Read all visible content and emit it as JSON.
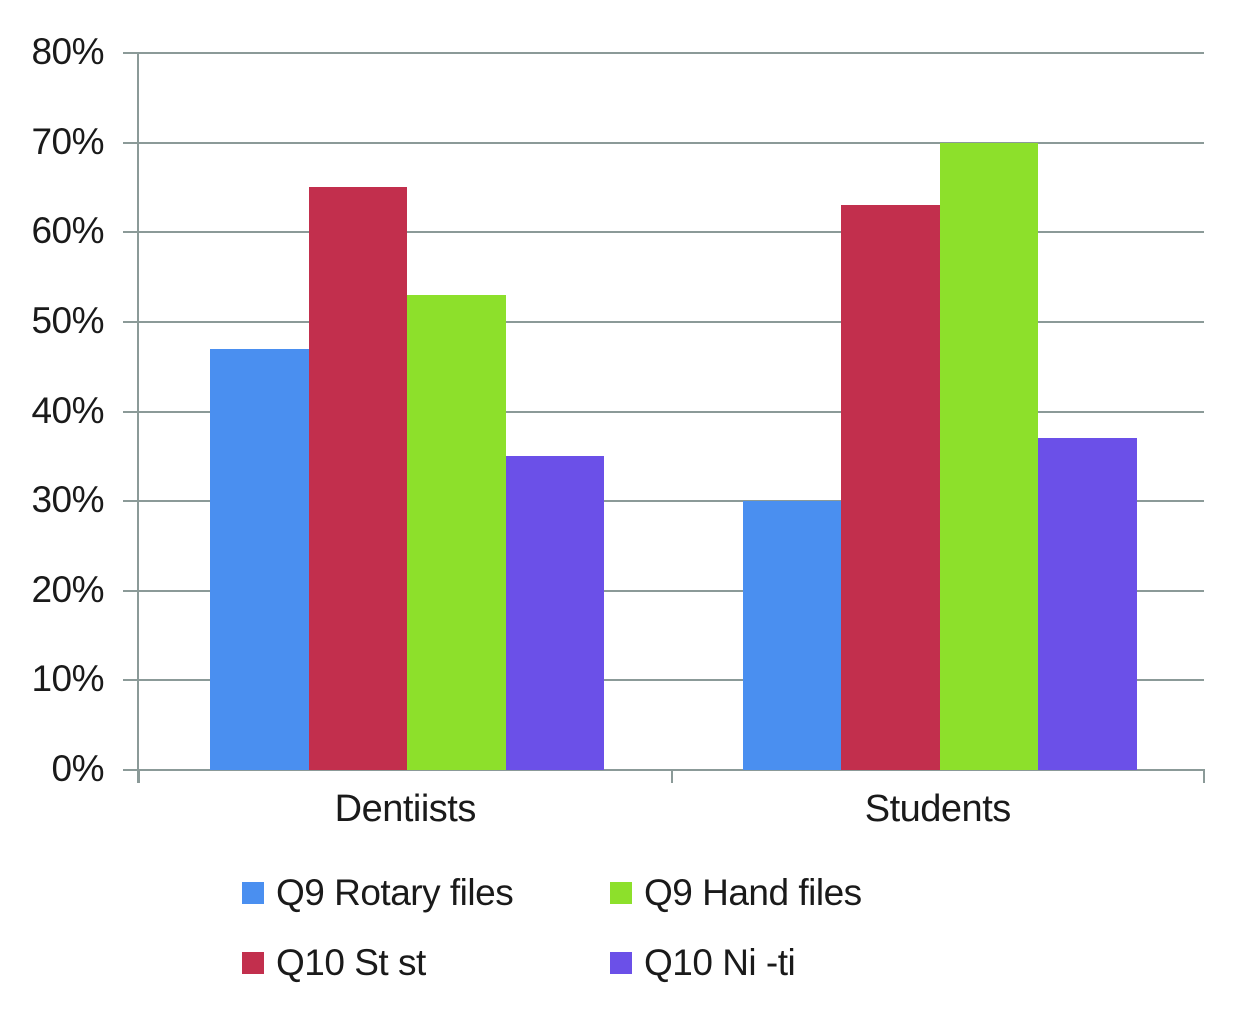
{
  "chart_data": {
    "type": "bar",
    "categories": [
      "Dentiists",
      "Students"
    ],
    "series": [
      {
        "name": "Q9 Rotary files",
        "color": "#4A8FF0",
        "values": [
          47,
          30
        ]
      },
      {
        "name": "Q10 St st",
        "color": "#C22F4D",
        "values": [
          65,
          63
        ]
      },
      {
        "name": "Q9 Hand files",
        "color": "#8DE02B",
        "values": [
          53,
          70
        ]
      },
      {
        "name": "Q10 Ni -ti",
        "color": "#6B50E8",
        "values": [
          35,
          37
        ]
      }
    ],
    "legend_order": [
      0,
      2,
      1,
      3
    ],
    "title": "",
    "xlabel": "",
    "ylabel": "",
    "ylim": [
      0,
      80
    ],
    "ytick_step": 10,
    "ytick_suffix": "%",
    "grid": true,
    "legend_position": "bottom",
    "gridline_color": "#8B9A98",
    "text_color": "#1A1A1A",
    "background": "#FFFFFF"
  }
}
